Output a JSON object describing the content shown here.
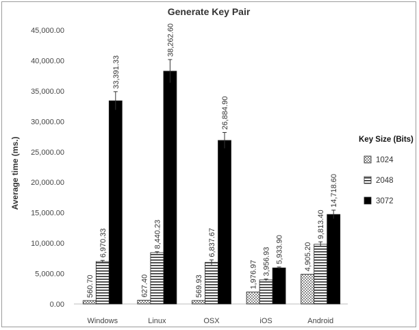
{
  "chart_data": {
    "type": "bar",
    "title": "Generate Key Pair",
    "xlabel": "",
    "ylabel": "Average time (ms.)",
    "ylim": [
      0,
      45000
    ],
    "yticks": [
      0,
      5000,
      10000,
      15000,
      20000,
      25000,
      30000,
      35000,
      40000,
      45000
    ],
    "ytick_labels": [
      "0.00",
      "5,000.00",
      "10,000.00",
      "15,000.00",
      "20,000.00",
      "25,000.00",
      "30,000.00",
      "35,000.00",
      "40,000.00",
      "45,000.00"
    ],
    "categories": [
      "Windows",
      "Linux",
      "OSX",
      "iOS",
      "Android"
    ],
    "legend_title": "Key Size (Bits)",
    "legend_position": "right",
    "grid": false,
    "series": [
      {
        "name": "1024",
        "pattern": "checker",
        "values": [
          560.7,
          627.4,
          569.93,
          1976.97,
          4905.2
        ],
        "labels": [
          "560.70",
          "627.40",
          "569.93",
          "1,976.97",
          "4,905.20"
        ],
        "errors": [
          0,
          0,
          0,
          0,
          0
        ]
      },
      {
        "name": "2048",
        "pattern": "horizontal-stripes",
        "values": [
          6970.33,
          8440.23,
          6837.67,
          3956.93,
          9813.4
        ],
        "labels": [
          "6,970.33",
          "8,440.23",
          "6,837.67",
          "3,956.93",
          "9,813.40"
        ],
        "errors": [
          200,
          150,
          400,
          150,
          400
        ]
      },
      {
        "name": "3072",
        "pattern": "solid",
        "color": "#000000",
        "values": [
          33391.33,
          38262.6,
          26884.9,
          5933.9,
          14718.6
        ],
        "labels": [
          "33,391.33",
          "38,262.60",
          "26,884.90",
          "5,933.90",
          "14,718.60"
        ],
        "errors": [
          1500,
          1900,
          1300,
          150,
          700
        ]
      }
    ]
  }
}
